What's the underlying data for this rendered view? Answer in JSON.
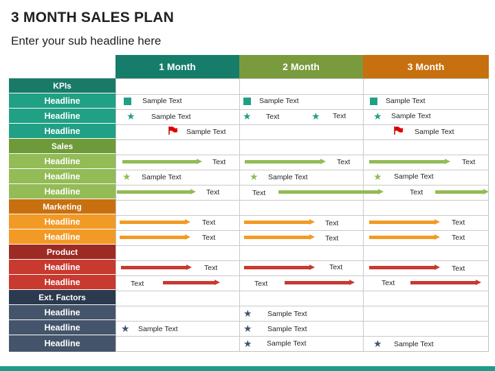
{
  "title": "3 MONTH SALES PLAN",
  "subtitle": "Enter your sub headline here",
  "months": [
    "1 Month",
    "2 Month",
    "3 Month"
  ],
  "colors": {
    "kpis_dark": "#1a7a68",
    "kpis": "#20a085",
    "sales_dark": "#6f9a3a",
    "sales": "#93bb56",
    "marketing_dark": "#c8700f",
    "marketing": "#f29a26",
    "product_dark": "#9e2a24",
    "product": "#c8392f",
    "ext_dark": "#2b3a4e",
    "ext": "#44546a"
  },
  "categories": {
    "kpis": "KPIs",
    "sales": "Sales",
    "marketing": "Marketing",
    "product": "Product",
    "ext": "Ext. Factors"
  },
  "headline": "Headline",
  "text": {
    "sample": "Sample Text",
    "short": "Text"
  }
}
